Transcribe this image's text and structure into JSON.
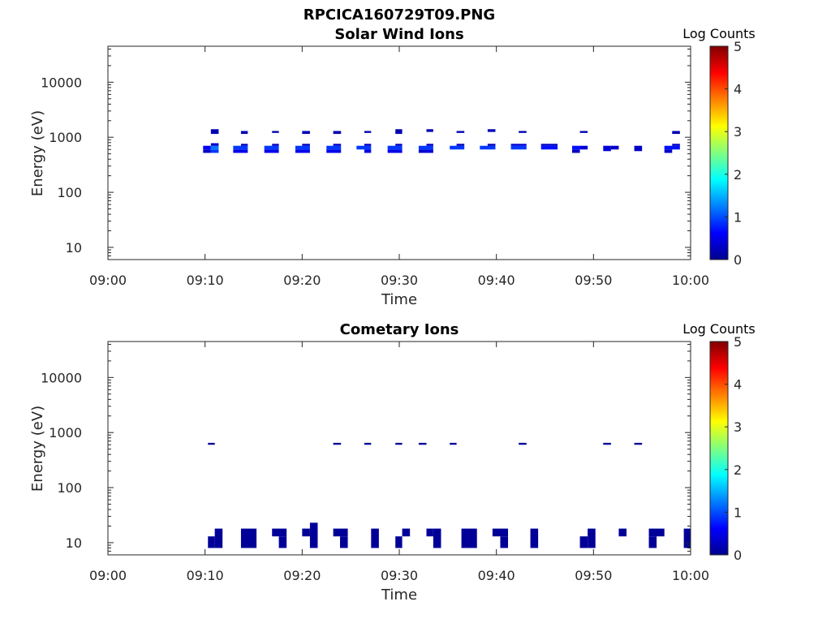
{
  "figure_title": "RPCICA160729T09.PNG",
  "colors": {
    "axis": "#262626",
    "background": "#ffffff"
  },
  "colormap": [
    "#00008f",
    "#0000ff",
    "#0080ff",
    "#00ffff",
    "#80ff80",
    "#ffff00",
    "#ff8000",
    "#ff0000",
    "#800000"
  ],
  "chart_data": [
    {
      "type": "heatmap",
      "title": "Solar Wind Ions",
      "xlabel": "Time",
      "ylabel": "Energy (eV)",
      "x_ticks": [
        "09:00",
        "09:10",
        "09:20",
        "09:30",
        "09:40",
        "09:50",
        "10:00"
      ],
      "x_range_minutes": [
        0,
        60
      ],
      "y_scale": "log",
      "y_ticks": [
        "10",
        "100",
        "1000",
        "10000"
      ],
      "y_range_eV": [
        6,
        45000
      ],
      "colorbar": {
        "label": "Log Counts",
        "ticks": [
          "0",
          "1",
          "2",
          "3",
          "4",
          "5"
        ],
        "range": [
          0,
          5
        ]
      },
      "cells": [
        [
          9.8,
          10.6,
          520,
          600,
          0.3
        ],
        [
          9.8,
          10.6,
          600,
          700,
          0.6
        ],
        [
          10.6,
          11.4,
          520,
          600,
          0.9
        ],
        [
          10.6,
          11.4,
          600,
          700,
          1.2
        ],
        [
          10.6,
          11.4,
          700,
          780,
          0.3
        ],
        [
          10.6,
          11.4,
          1150,
          1400,
          0.2
        ],
        [
          12.9,
          14.4,
          520,
          600,
          0.5
        ],
        [
          12.9,
          14.4,
          600,
          700,
          0.9
        ],
        [
          13.7,
          14.4,
          700,
          760,
          0.3
        ],
        [
          13.7,
          14.4,
          1150,
          1300,
          0.2
        ],
        [
          16.1,
          17.6,
          520,
          600,
          0.5
        ],
        [
          16.1,
          17.6,
          600,
          700,
          0.9
        ],
        [
          16.9,
          17.6,
          700,
          760,
          0.3
        ],
        [
          16.9,
          17.6,
          1200,
          1300,
          0.2
        ],
        [
          19.3,
          20.8,
          520,
          600,
          0.5
        ],
        [
          19.3,
          20.8,
          600,
          700,
          0.9
        ],
        [
          20,
          20.8,
          700,
          760,
          0.3
        ],
        [
          20,
          20.8,
          1150,
          1300,
          0.2
        ],
        [
          22.5,
          24,
          520,
          600,
          0.5
        ],
        [
          22.5,
          24,
          600,
          700,
          0.9
        ],
        [
          23.2,
          24,
          700,
          760,
          0.3
        ],
        [
          23.2,
          24,
          1150,
          1300,
          0.2
        ],
        [
          25.6,
          27.1,
          600,
          700,
          0.9
        ],
        [
          26.4,
          27.1,
          520,
          600,
          0.5
        ],
        [
          26.4,
          27.1,
          700,
          760,
          0.3
        ],
        [
          26.4,
          27.1,
          1200,
          1300,
          0.2
        ],
        [
          28.8,
          30.3,
          520,
          600,
          0.5
        ],
        [
          28.8,
          30.3,
          600,
          700,
          0.9
        ],
        [
          29.6,
          30.3,
          700,
          760,
          0.3
        ],
        [
          29.6,
          30.3,
          1150,
          1400,
          0.2
        ],
        [
          32,
          33.5,
          520,
          600,
          0.4
        ],
        [
          32,
          33.5,
          600,
          700,
          0.9
        ],
        [
          32.8,
          33.5,
          700,
          760,
          0.3
        ],
        [
          32.8,
          33.5,
          1250,
          1400,
          0.2
        ],
        [
          35.2,
          36.7,
          600,
          700,
          0.9
        ],
        [
          35.9,
          36.7,
          700,
          760,
          0.3
        ],
        [
          35.9,
          36.7,
          1200,
          1300,
          0.2
        ],
        [
          38.3,
          39.9,
          600,
          700,
          0.9
        ],
        [
          39.1,
          39.9,
          700,
          760,
          0.3
        ],
        [
          39.1,
          39.9,
          1250,
          1400,
          0.2
        ],
        [
          41.5,
          43.1,
          600,
          700,
          0.9
        ],
        [
          41.5,
          43.1,
          700,
          760,
          0.4
        ],
        [
          42.3,
          43.1,
          1200,
          1300,
          0.2
        ],
        [
          44.6,
          46.3,
          600,
          700,
          0.7
        ],
        [
          44.6,
          46.3,
          700,
          760,
          0.3
        ],
        [
          47.8,
          48.6,
          520,
          600,
          0.3
        ],
        [
          47.8,
          48.6,
          600,
          700,
          0.7
        ],
        [
          48.6,
          49.4,
          600,
          700,
          0.4
        ],
        [
          48.6,
          49.4,
          1200,
          1300,
          0.2
        ],
        [
          51,
          51.8,
          560,
          700,
          0.4
        ],
        [
          51.8,
          52.6,
          600,
          700,
          0.3
        ],
        [
          54.2,
          55,
          560,
          700,
          0.3
        ],
        [
          57.3,
          58.1,
          520,
          600,
          0.3
        ],
        [
          57.3,
          58.9,
          600,
          700,
          0.7
        ],
        [
          58.1,
          58.9,
          700,
          760,
          0.3
        ],
        [
          58.1,
          58.9,
          1150,
          1300,
          0.2
        ]
      ]
    },
    {
      "type": "heatmap",
      "title": "Cometary Ions",
      "xlabel": "Time",
      "ylabel": "Energy (eV)",
      "x_ticks": [
        "09:00",
        "09:10",
        "09:20",
        "09:30",
        "09:40",
        "09:50",
        "10:00"
      ],
      "x_range_minutes": [
        0,
        60
      ],
      "y_scale": "log",
      "y_ticks": [
        "10",
        "100",
        "1000",
        "10000"
      ],
      "y_range_eV": [
        6,
        45000
      ],
      "colorbar": {
        "label": "Log Counts",
        "ticks": [
          "0",
          "1",
          "2",
          "3",
          "4",
          "5"
        ],
        "range": [
          0,
          5
        ]
      },
      "cells": [
        [
          10.3,
          11,
          600,
          650,
          0.05
        ],
        [
          23.2,
          24,
          600,
          650,
          0.05
        ],
        [
          26.4,
          27.1,
          600,
          650,
          0.05
        ],
        [
          29.6,
          30.3,
          600,
          650,
          0.05
        ],
        [
          32,
          32.8,
          600,
          650,
          0.05
        ],
        [
          35.2,
          35.9,
          600,
          650,
          0.05
        ],
        [
          42.3,
          43.1,
          600,
          650,
          0.05
        ],
        [
          51,
          51.8,
          600,
          650,
          0.05
        ],
        [
          54.2,
          55,
          600,
          650,
          0.05
        ],
        [
          10.3,
          11,
          8,
          13,
          0.05
        ],
        [
          11,
          11.8,
          8,
          18,
          0.05
        ],
        [
          13.7,
          15.3,
          8,
          18,
          0.05
        ],
        [
          16.9,
          18.4,
          13,
          18,
          0.05
        ],
        [
          17.6,
          18.4,
          8,
          13,
          0.05
        ],
        [
          20,
          20.8,
          13,
          18,
          0.05
        ],
        [
          20.8,
          21.6,
          8,
          23,
          0.05
        ],
        [
          23.2,
          24.7,
          13,
          18,
          0.05
        ],
        [
          23.9,
          24.7,
          8,
          13,
          0.05
        ],
        [
          27.1,
          27.9,
          8,
          18,
          0.05
        ],
        [
          29.6,
          30.3,
          8,
          13,
          0.05
        ],
        [
          30.3,
          31.1,
          13,
          18,
          0.05
        ],
        [
          33.5,
          34.3,
          8,
          18,
          0.05
        ],
        [
          32.8,
          33.5,
          13,
          18,
          0.05
        ],
        [
          36.4,
          38,
          8,
          18,
          0.05
        ],
        [
          39.6,
          41.2,
          13,
          18,
          0.05
        ],
        [
          40.4,
          41.2,
          8,
          13,
          0.05
        ],
        [
          43.5,
          44.3,
          8,
          18,
          0.05
        ],
        [
          48.6,
          49.4,
          8,
          13,
          0.05
        ],
        [
          49.4,
          50.2,
          8,
          18,
          0.05
        ],
        [
          52.6,
          53.4,
          13,
          18,
          0.05
        ],
        [
          55.7,
          57.3,
          13,
          18,
          0.05
        ],
        [
          55.7,
          56.5,
          8,
          13,
          0.05
        ],
        [
          59.3,
          60,
          8,
          18,
          0.05
        ]
      ]
    }
  ]
}
